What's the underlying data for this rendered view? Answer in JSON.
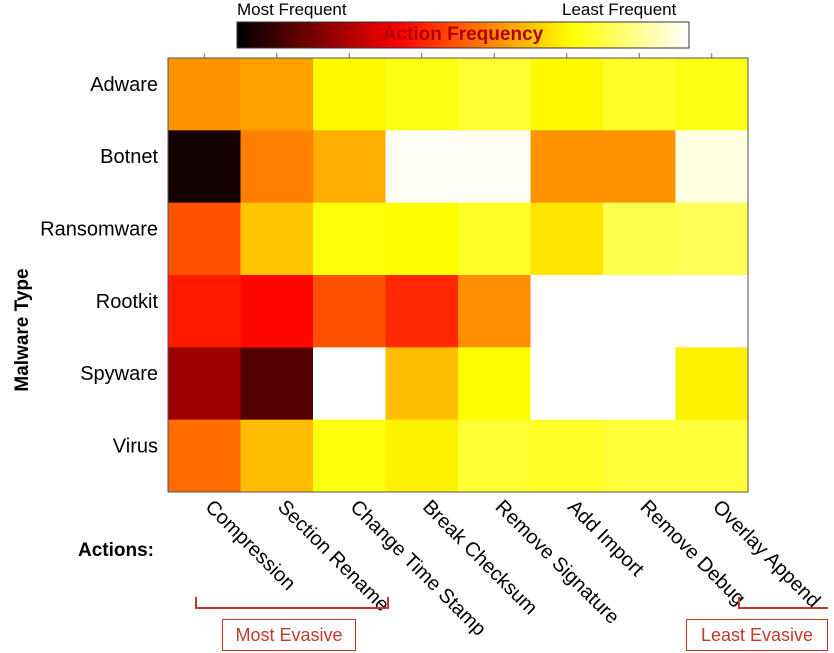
{
  "chart_data": {
    "type": "heatmap",
    "title": "Action Frequency",
    "colorbar": {
      "min_label": "Most Frequent",
      "max_label": "Least Frequent",
      "colormap": "hot"
    },
    "ylabel": "Malware Type",
    "xlabel": "Actions:",
    "rows": [
      "Adware",
      "Botnet",
      "Ransomware",
      "Rootkit",
      "Spyware",
      "Virus"
    ],
    "columns": [
      "Compression",
      "Section Rename",
      "Change Time Stamp",
      "Break Checksum",
      "Remove Signature",
      "Add Import",
      "Remove Debug",
      "Overlay Append"
    ],
    "values": [
      [
        0.58,
        0.6,
        0.73,
        0.76,
        0.79,
        0.73,
        0.78,
        0.76
      ],
      [
        0.03,
        0.55,
        0.62,
        0.99,
        0.99,
        0.58,
        0.58,
        0.97
      ],
      [
        0.48,
        0.65,
        0.75,
        0.74,
        0.78,
        0.7,
        0.82,
        0.83
      ],
      [
        0.4,
        0.37,
        0.48,
        0.42,
        0.57,
        1.0,
        1.0,
        1.0
      ],
      [
        0.22,
        0.12,
        1.0,
        0.64,
        0.74,
        1.0,
        1.0,
        0.72
      ],
      [
        0.52,
        0.64,
        0.75,
        0.72,
        0.79,
        0.78,
        0.8,
        0.8
      ]
    ],
    "annotations": {
      "most_evasive": "Most Evasive",
      "least_evasive": "Least Evasive"
    }
  },
  "colors": {
    "bracket": "#c0392b"
  }
}
